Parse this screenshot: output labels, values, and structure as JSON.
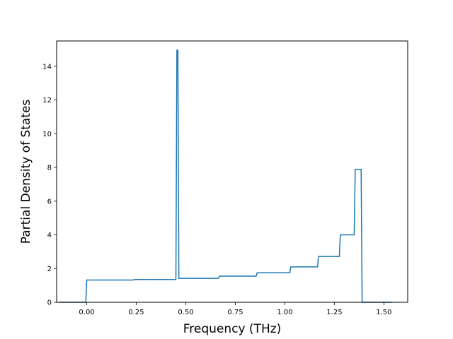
{
  "chart_data": {
    "type": "line",
    "title": "",
    "xlabel": "Frequency (THz)",
    "ylabel": "Partial Density of States",
    "xlim": [
      -0.152,
      1.62
    ],
    "ylim": [
      0,
      15.5
    ],
    "grid": false,
    "legend": "none",
    "line_color": "#1f77b4",
    "x_ticks": [
      0.0,
      0.25,
      0.5,
      0.75,
      1.0,
      1.25,
      1.5
    ],
    "x_tick_labels": [
      "0.00",
      "0.25",
      "0.50",
      "0.75",
      "1.00",
      "1.25",
      "1.50"
    ],
    "y_ticks": [
      0,
      2,
      4,
      6,
      8,
      10,
      12,
      14
    ],
    "y_tick_labels": [
      "0",
      "2",
      "4",
      "6",
      "8",
      "10",
      "12",
      "14"
    ],
    "series": [
      {
        "x": [
          -0.14,
          -0.005,
          0.0,
          0.235,
          0.24,
          0.45,
          0.455,
          0.46,
          0.465,
          0.665,
          0.67,
          0.855,
          0.86,
          1.025,
          1.03,
          1.165,
          1.17,
          1.275,
          1.28,
          1.35,
          1.355,
          1.385,
          1.39,
          1.54
        ],
        "y": [
          0.0,
          0.0,
          1.32,
          1.32,
          1.35,
          1.35,
          14.95,
          14.95,
          1.42,
          1.42,
          1.55,
          1.55,
          1.75,
          1.75,
          2.1,
          2.1,
          2.72,
          2.72,
          4.0,
          4.0,
          7.88,
          7.88,
          0.0,
          0.0
        ]
      }
    ]
  }
}
